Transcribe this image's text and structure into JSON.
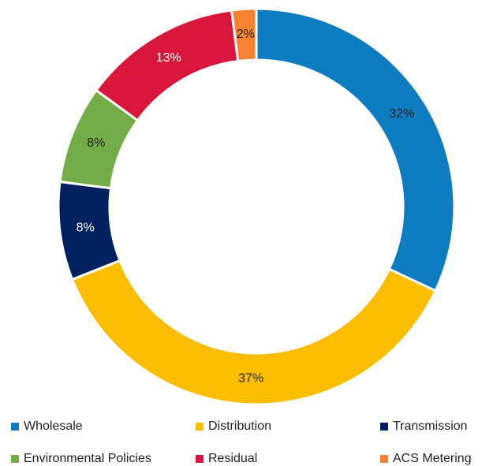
{
  "chart_data": {
    "type": "donut",
    "categories": [
      "Wholesale",
      "Distribution",
      "Transmission",
      "Environmental Policies",
      "Residual",
      "ACS Metering"
    ],
    "values": [
      32,
      37,
      8,
      8,
      13,
      2
    ],
    "value_labels": [
      "32%",
      "37%",
      "8%",
      "8%",
      "13%",
      "2%"
    ],
    "colors": [
      "#0e7cc1",
      "#fbbd00",
      "#002060",
      "#72ad47",
      "#d9163b",
      "#f58233"
    ],
    "legend": "bottom"
  }
}
